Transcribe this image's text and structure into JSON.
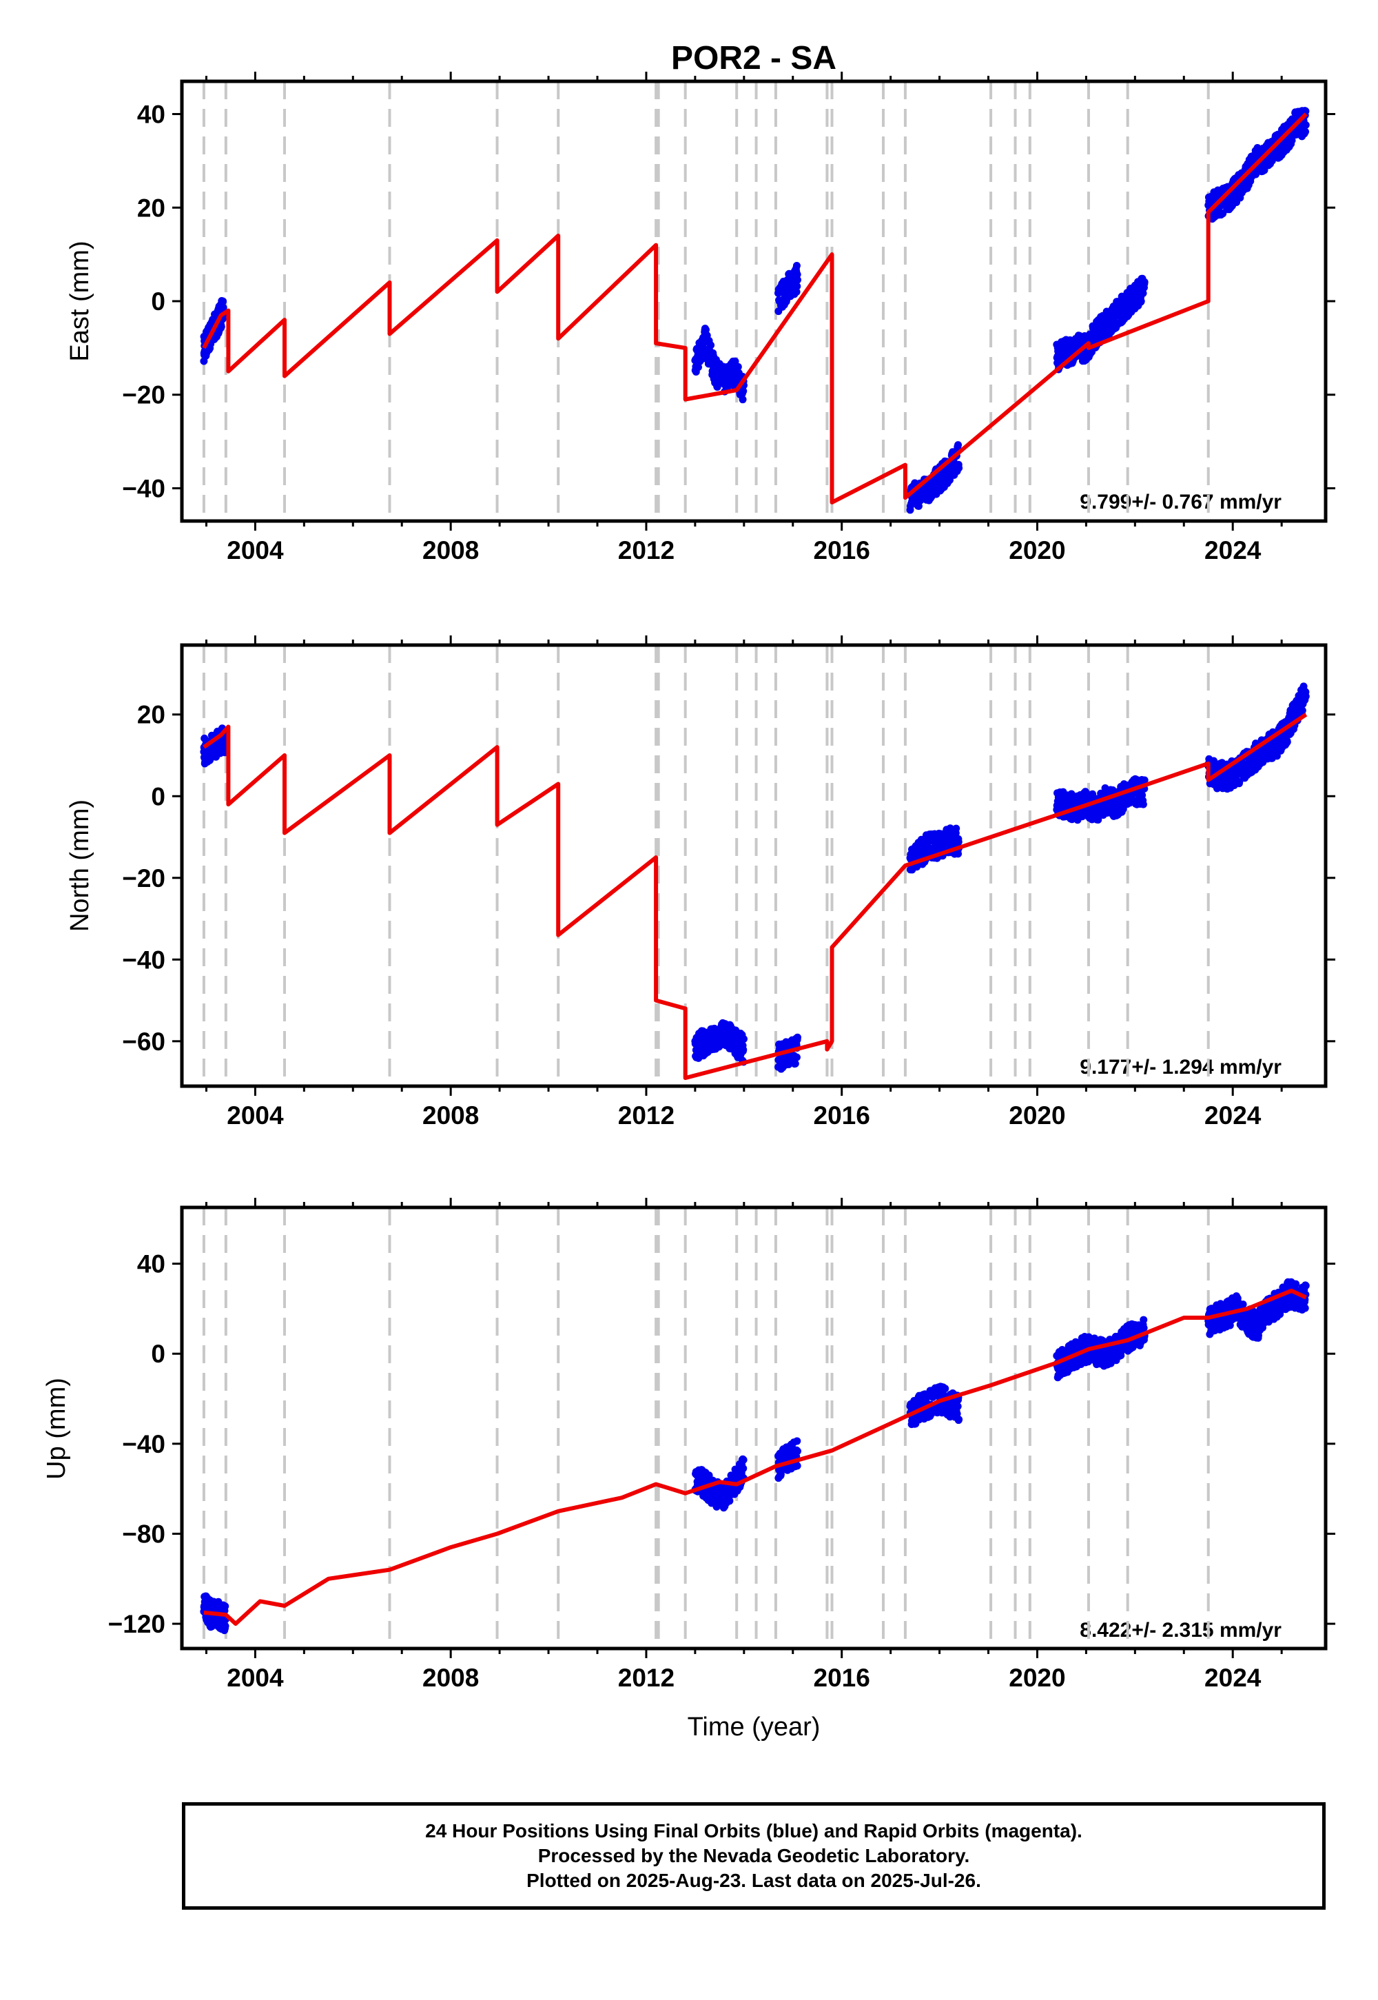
{
  "figure_title": "POR2 - SA",
  "x_axis_label": "Time (year)",
  "footer": {
    "line1": "24 Hour Positions Using Final Orbits (blue) and Rapid Orbits (magenta).",
    "line2": "Processed by the Nevada Geodetic Laboratory.",
    "line3": "Plotted on 2025-Aug-23. Last data on 2025-Jul-26."
  },
  "colors": {
    "observations": "#0000ee",
    "model": "#ee0000",
    "offset_lines": "#c8c8c8"
  },
  "chart_data": [
    {
      "type": "line",
      "component": "East",
      "ylabel": "East (mm)",
      "xlim": [
        2002.5,
        2025.9
      ],
      "ylim": [
        -47,
        47
      ],
      "xticks": [
        2004,
        2008,
        2012,
        2016,
        2020,
        2024
      ],
      "yticks": [
        -40,
        -20,
        0,
        20,
        40
      ],
      "rate_text": "9.799+/- 0.767 mm/yr",
      "offset_epochs": [
        2002.95,
        2003.4,
        2004.6,
        2006.75,
        2008.95,
        2010.2,
        2012.2,
        2012.25,
        2012.8,
        2013.85,
        2014.25,
        2014.65,
        2015.7,
        2015.8,
        2016.85,
        2017.3,
        2019.05,
        2019.55,
        2019.85,
        2021.05,
        2021.85,
        2023.5
      ],
      "series": [
        {
          "name": "model",
          "x": [
            2002.95,
            2003.3,
            2003.45,
            2003.45,
            2004.6,
            2004.6,
            2006.75,
            2006.75,
            2008.95,
            2008.95,
            2010.2,
            2010.2,
            2012.2,
            2012.2,
            2012.8,
            2012.8,
            2013.85,
            2013.85,
            2015.8,
            2015.8,
            2017.3,
            2017.3,
            2021.05,
            2021.05,
            2023.5,
            2023.5,
            2025.5
          ],
          "y": [
            -10,
            -3,
            -2,
            -15,
            -4,
            -16,
            4,
            -7,
            13,
            2,
            14,
            -8,
            12,
            -9,
            -10,
            -21,
            -19,
            -19,
            10,
            -43,
            -35,
            -42,
            -9,
            -10,
            0,
            19,
            40
          ]
        },
        {
          "name": "observations",
          "segments": [
            {
              "x": [
                2002.95,
                2003.05,
                2003.15,
                2003.25,
                2003.35
              ],
              "y": [
                -10,
                -8,
                -6,
                -4,
                -2
              ]
            },
            {
              "x": [
                2013.0,
                2013.2,
                2013.4,
                2013.6,
                2013.8,
                2014.0
              ],
              "y": [
                -14,
                -8,
                -15,
                -17,
                -15,
                -19
              ]
            },
            {
              "x": [
                2014.7,
                2014.9,
                2015.1
              ],
              "y": [
                0,
                3,
                5
              ]
            },
            {
              "x": [
                2017.4,
                2017.6,
                2017.8,
                2018.0,
                2018.2,
                2018.4
              ],
              "y": [
                -42,
                -41,
                -40,
                -38,
                -36,
                -33
              ]
            },
            {
              "x": [
                2020.4,
                2020.6,
                2020.8,
                2021.0,
                2021.2,
                2021.4,
                2021.6,
                2021.8,
                2022.0,
                2022.2
              ],
              "y": [
                -12,
                -11,
                -10,
                -10,
                -7,
                -5,
                -3,
                -1,
                1,
                3
              ]
            },
            {
              "x": [
                2023.5,
                2023.7,
                2023.9,
                2024.1,
                2024.3,
                2024.5,
                2024.7,
                2024.9,
                2025.1,
                2025.3,
                2025.5
              ],
              "y": [
                20,
                21,
                22,
                24,
                27,
                30,
                31,
                33,
                35,
                38,
                38
              ]
            }
          ]
        }
      ]
    },
    {
      "type": "line",
      "component": "North",
      "ylabel": "North (mm)",
      "xlim": [
        2002.5,
        2025.9
      ],
      "ylim": [
        -71,
        37
      ],
      "xticks": [
        2004,
        2008,
        2012,
        2016,
        2020,
        2024
      ],
      "yticks": [
        -60,
        -40,
        -20,
        0,
        20
      ],
      "rate_text": "9.177+/- 1.294 mm/yr",
      "offset_epochs": [
        2002.95,
        2003.4,
        2004.6,
        2006.75,
        2008.95,
        2010.2,
        2012.2,
        2012.25,
        2012.8,
        2013.85,
        2014.25,
        2014.65,
        2015.7,
        2015.8,
        2016.85,
        2017.3,
        2019.05,
        2019.55,
        2019.85,
        2021.05,
        2021.85,
        2023.5
      ],
      "series": [
        {
          "name": "model",
          "x": [
            2002.95,
            2003.3,
            2003.45,
            2003.45,
            2004.6,
            2004.6,
            2006.75,
            2006.75,
            2008.95,
            2008.95,
            2010.2,
            2010.2,
            2012.2,
            2012.2,
            2012.8,
            2012.8,
            2015.7,
            2015.7,
            2015.8,
            2015.8,
            2017.3,
            2021.05,
            2021.05,
            2023.5,
            2023.5,
            2025.5
          ],
          "y": [
            12,
            15,
            17,
            -2,
            10,
            -9,
            10,
            -9,
            12,
            -7,
            3,
            -34,
            -15,
            -50,
            -52,
            -69,
            -60,
            -62,
            -60,
            -37,
            -17,
            -2,
            -2,
            8,
            4,
            20
          ]
        },
        {
          "name": "observations",
          "segments": [
            {
              "x": [
                2002.95,
                2003.1,
                2003.25,
                2003.4
              ],
              "y": [
                11,
                12,
                13,
                14
              ]
            },
            {
              "x": [
                2013.0,
                2013.2,
                2013.4,
                2013.6,
                2013.8,
                2014.0
              ],
              "y": [
                -62,
                -60,
                -60,
                -58,
                -60,
                -62
              ]
            },
            {
              "x": [
                2014.7,
                2014.9,
                2015.1
              ],
              "y": [
                -64,
                -63,
                -62
              ]
            },
            {
              "x": [
                2017.4,
                2017.6,
                2017.8,
                2018.0,
                2018.2,
                2018.4
              ],
              "y": [
                -15,
                -14,
                -12,
                -12,
                -11,
                -11
              ]
            },
            {
              "x": [
                2020.4,
                2020.6,
                2020.8,
                2021.0,
                2021.2,
                2021.4,
                2021.6,
                2021.8,
                2022.0,
                2022.2
              ],
              "y": [
                -2,
                -2,
                -3,
                -2,
                -3,
                -1,
                -2,
                0,
                1,
                1
              ]
            },
            {
              "x": [
                2023.5,
                2023.7,
                2023.9,
                2024.1,
                2024.3,
                2024.5,
                2024.7,
                2024.9,
                2025.1,
                2025.3,
                2025.5
              ],
              "y": [
                6,
                5,
                5,
                6,
                8,
                10,
                12,
                13,
                16,
                21,
                25
              ]
            }
          ]
        }
      ]
    },
    {
      "type": "line",
      "component": "Up",
      "ylabel": "Up (mm)",
      "xlim": [
        2002.5,
        2025.9
      ],
      "ylim": [
        -131,
        65
      ],
      "xticks": [
        2004,
        2008,
        2012,
        2016,
        2020,
        2024
      ],
      "yticks": [
        -120,
        -80,
        -40,
        0,
        40
      ],
      "rate_text": "8.422+/- 2.315 mm/yr",
      "offset_epochs": [
        2002.95,
        2003.4,
        2004.6,
        2006.75,
        2008.95,
        2010.2,
        2012.2,
        2012.25,
        2012.8,
        2013.85,
        2014.25,
        2014.65,
        2015.7,
        2015.8,
        2016.85,
        2017.3,
        2019.05,
        2019.55,
        2019.85,
        2021.05,
        2021.85,
        2023.5
      ],
      "series": [
        {
          "name": "model",
          "x": [
            2002.95,
            2003.4,
            2003.6,
            2004.1,
            2004.6,
            2005.5,
            2006.75,
            2008.0,
            2008.95,
            2010.2,
            2011.5,
            2012.2,
            2012.8,
            2013.5,
            2013.85,
            2014.65,
            2015.8,
            2017.3,
            2018.0,
            2019.05,
            2020.4,
            2021.05,
            2021.85,
            2023.0,
            2023.5,
            2024.3,
            2025.2,
            2025.5
          ],
          "y": [
            -115,
            -116,
            -120,
            -110,
            -112,
            -100,
            -96,
            -86,
            -80,
            -70,
            -64,
            -58,
            -62,
            -57,
            -58,
            -50,
            -43,
            -28,
            -21,
            -14,
            -4,
            2,
            6,
            16,
            16,
            20,
            28,
            25
          ]
        },
        {
          "name": "observations",
          "segments": [
            {
              "x": [
                2002.95,
                2003.1,
                2003.25,
                2003.4
              ],
              "y": [
                -112,
                -116,
                -116,
                -118
              ]
            },
            {
              "x": [
                2013.0,
                2013.2,
                2013.4,
                2013.6,
                2013.8,
                2014.0
              ],
              "y": [
                -55,
                -58,
                -62,
                -63,
                -58,
                -50
              ]
            },
            {
              "x": [
                2014.7,
                2014.9,
                2015.1
              ],
              "y": [
                -50,
                -46,
                -44
              ]
            },
            {
              "x": [
                2017.4,
                2017.6,
                2017.8,
                2018.0,
                2018.2,
                2018.4
              ],
              "y": [
                -27,
                -24,
                -22,
                -20,
                -22,
                -24
              ]
            },
            {
              "x": [
                2020.4,
                2020.6,
                2020.8,
                2021.0,
                2021.2,
                2021.4,
                2021.6,
                2021.8,
                2022.0,
                2022.2
              ],
              "y": [
                -5,
                -3,
                0,
                2,
                1,
                0,
                2,
                6,
                9,
                10
              ]
            },
            {
              "x": [
                2023.5,
                2023.7,
                2023.9,
                2024.1,
                2024.3,
                2024.5,
                2024.7,
                2024.9,
                2025.1,
                2025.3,
                2025.5
              ],
              "y": [
                14,
                16,
                18,
                20,
                15,
                12,
                18,
                22,
                26,
                26,
                25
              ]
            }
          ]
        }
      ]
    }
  ]
}
